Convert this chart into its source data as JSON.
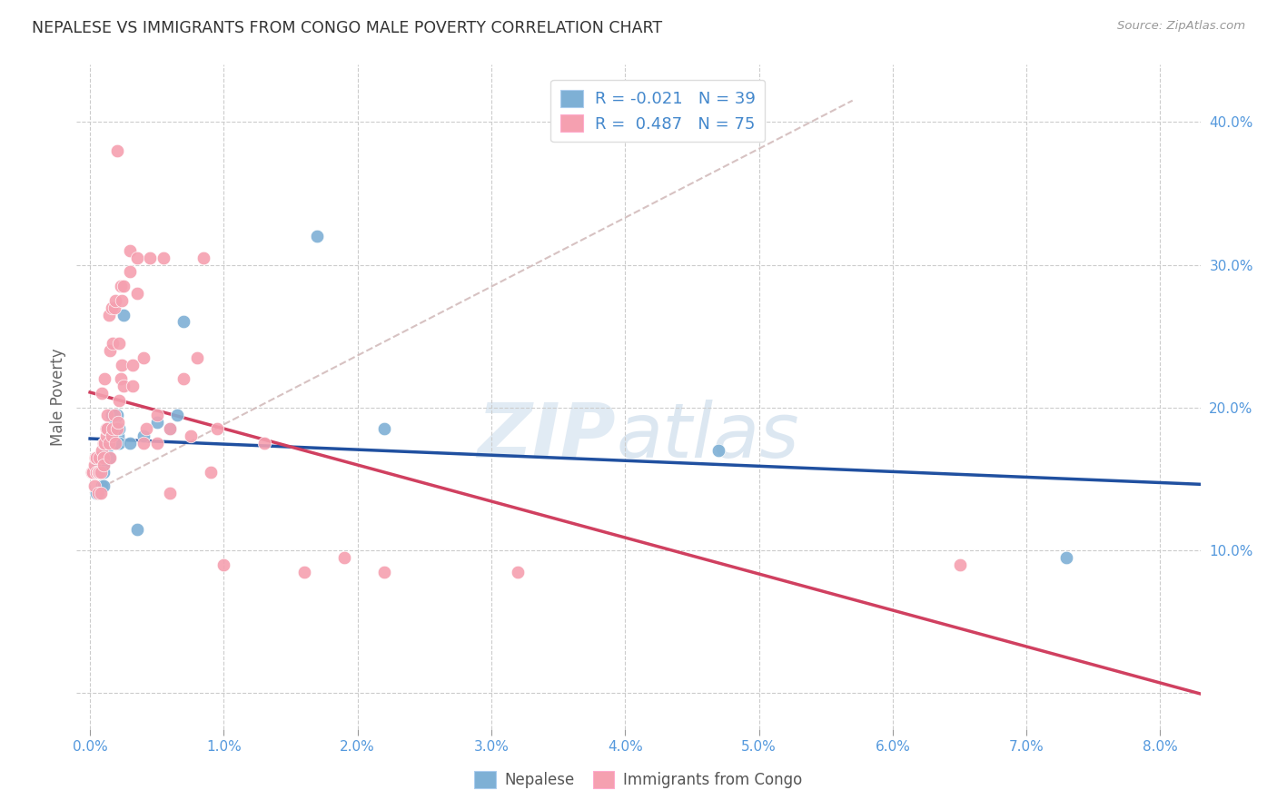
{
  "title": "NEPALESE VS IMMIGRANTS FROM CONGO MALE POVERTY CORRELATION CHART",
  "source": "Source: ZipAtlas.com",
  "ylabel": "Male Poverty",
  "x_ticks": [
    0.0,
    0.01,
    0.02,
    0.03,
    0.04,
    0.05,
    0.06,
    0.07,
    0.08
  ],
  "x_tick_labels": [
    "0.0%",
    "1.0%",
    "2.0%",
    "3.0%",
    "4.0%",
    "5.0%",
    "6.0%",
    "7.0%",
    "8.0%"
  ],
  "y_ticks": [
    0.0,
    0.1,
    0.2,
    0.3,
    0.4
  ],
  "y_tick_labels": [
    "",
    "10.0%",
    "20.0%",
    "30.0%",
    "40.0%"
  ],
  "xlim": [
    -0.001,
    0.083
  ],
  "ylim": [
    -0.025,
    0.44
  ],
  "nepalese_color": "#7eb0d5",
  "congo_color": "#f5a0b0",
  "nepalese_line_color": "#2050a0",
  "congo_line_color": "#d04060",
  "diag_line_color": "#d0b8b8",
  "nepalese_R": -0.021,
  "nepalese_N": 39,
  "congo_R": 0.487,
  "congo_N": 75,
  "legend_label_nepalese": "Nepalese",
  "legend_label_congo": "Immigrants from Congo",
  "watermark_zip": "ZIP",
  "watermark_atlas": "atlas",
  "nepalese_x": [
    0.0002,
    0.0003,
    0.0004,
    0.0005,
    0.0006,
    0.0007,
    0.0007,
    0.0008,
    0.0009,
    0.001,
    0.001,
    0.001,
    0.0012,
    0.0013,
    0.0013,
    0.0014,
    0.0014,
    0.0015,
    0.0016,
    0.0016,
    0.0017,
    0.0018,
    0.002,
    0.002,
    0.0021,
    0.0022,
    0.0022,
    0.0025,
    0.003,
    0.0035,
    0.004,
    0.005,
    0.006,
    0.0065,
    0.007,
    0.017,
    0.022,
    0.047,
    0.073
  ],
  "nepalese_y": [
    0.155,
    0.155,
    0.155,
    0.14,
    0.16,
    0.165,
    0.14,
    0.155,
    0.145,
    0.16,
    0.155,
    0.145,
    0.17,
    0.175,
    0.185,
    0.175,
    0.165,
    0.18,
    0.195,
    0.175,
    0.18,
    0.19,
    0.175,
    0.195,
    0.18,
    0.175,
    0.185,
    0.265,
    0.175,
    0.115,
    0.18,
    0.19,
    0.185,
    0.195,
    0.26,
    0.32,
    0.185,
    0.17,
    0.095
  ],
  "congo_x": [
    0.0001,
    0.0002,
    0.0003,
    0.0003,
    0.0004,
    0.0005,
    0.0005,
    0.0006,
    0.0006,
    0.0007,
    0.0007,
    0.0008,
    0.0008,
    0.0009,
    0.0009,
    0.001,
    0.001,
    0.001,
    0.0011,
    0.0011,
    0.0012,
    0.0012,
    0.0013,
    0.0013,
    0.0014,
    0.0014,
    0.0015,
    0.0015,
    0.0016,
    0.0016,
    0.0017,
    0.0017,
    0.0018,
    0.0018,
    0.0019,
    0.0019,
    0.002,
    0.002,
    0.0021,
    0.0022,
    0.0022,
    0.0023,
    0.0023,
    0.0024,
    0.0024,
    0.0025,
    0.0025,
    0.003,
    0.003,
    0.0032,
    0.0032,
    0.0035,
    0.0035,
    0.004,
    0.004,
    0.0042,
    0.0045,
    0.005,
    0.005,
    0.0055,
    0.006,
    0.006,
    0.007,
    0.0075,
    0.008,
    0.0085,
    0.009,
    0.0095,
    0.01,
    0.013,
    0.016,
    0.019,
    0.022,
    0.032,
    0.065
  ],
  "congo_y": [
    0.155,
    0.155,
    0.16,
    0.145,
    0.165,
    0.165,
    0.155,
    0.14,
    0.155,
    0.165,
    0.155,
    0.14,
    0.155,
    0.17,
    0.21,
    0.165,
    0.175,
    0.16,
    0.175,
    0.22,
    0.18,
    0.185,
    0.185,
    0.195,
    0.175,
    0.265,
    0.165,
    0.24,
    0.18,
    0.27,
    0.185,
    0.245,
    0.195,
    0.27,
    0.175,
    0.275,
    0.38,
    0.185,
    0.19,
    0.245,
    0.205,
    0.22,
    0.285,
    0.23,
    0.275,
    0.215,
    0.285,
    0.31,
    0.295,
    0.215,
    0.23,
    0.305,
    0.28,
    0.235,
    0.175,
    0.185,
    0.305,
    0.175,
    0.195,
    0.305,
    0.14,
    0.185,
    0.22,
    0.18,
    0.235,
    0.305,
    0.155,
    0.185,
    0.09,
    0.175,
    0.085,
    0.095,
    0.085,
    0.085,
    0.09
  ]
}
